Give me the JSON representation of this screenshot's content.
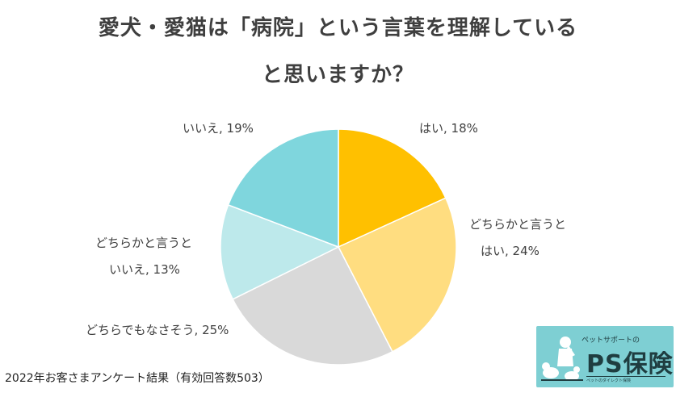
{
  "title_line1": "愛犬・愛猫は「病院」という言葉を理解している",
  "title_line2": "と思いますか？",
  "footnote": "2022年お客さまアンケート結果（有効回答数503）",
  "logo": {
    "tagline": "ペットサポートの",
    "name": "PS保険",
    "subline": "ペットのダイレクト保険"
  },
  "chart_data": {
    "type": "pie",
    "start_angle_deg": 0,
    "direction": "clockwise",
    "slices": [
      {
        "label_lines": [
          "はい, 18%"
        ],
        "value": 18,
        "color": "#ffc000"
      },
      {
        "label_lines": [
          "どちらかと言うと",
          "はい, 24%"
        ],
        "value": 24,
        "color": "#ffdd80"
      },
      {
        "label_lines": [
          "どちらでもなさそう, 25%"
        ],
        "value": 25,
        "color": "#d9d9d9"
      },
      {
        "label_lines": [
          "どちらかと言うと",
          "いいえ, 13%"
        ],
        "value": 13,
        "color": "#bde9eb"
      },
      {
        "label_lines": [
          "いいえ, 19%"
        ],
        "value": 19,
        "color": "#7fd6dd"
      }
    ]
  }
}
